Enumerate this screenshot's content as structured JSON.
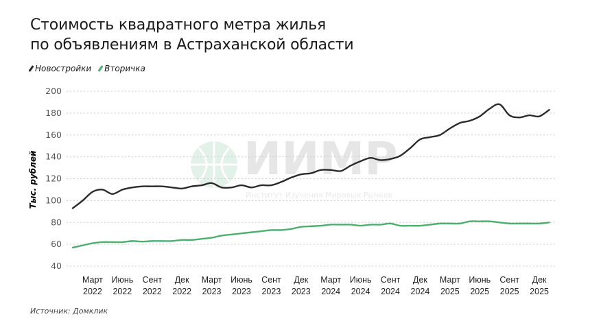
{
  "title_lines": [
    "Стоимость квадратного метра жилья",
    "по объявлениям в Астраханской области"
  ],
  "source": "Источник: Домклик",
  "watermark": {
    "logo": "ИИМР",
    "subtitle": "Институт Изучения Мировых Рынков"
  },
  "colors": {
    "Новостройки": "#2b2b2b",
    "Вторичка": "#4caf6e",
    "grid": "#cfcfcf"
  },
  "chart_data": {
    "type": "line",
    "title": "Стоимость квадратного метра жилья по объявлениям в Астраханской области",
    "ylabel": "Тыс. рублей",
    "xlabel": "",
    "ylim": [
      40,
      200
    ],
    "yticks": [
      40,
      60,
      80,
      100,
      120,
      140,
      160,
      180,
      200
    ],
    "grid": "horizontal dotted",
    "legend": "top-left",
    "x": [
      "2022-01",
      "2022-02",
      "2022-03",
      "2022-04",
      "2022-05",
      "2022-06",
      "2022-07",
      "2022-08",
      "2022-09",
      "2022-10",
      "2022-11",
      "2022-12",
      "2023-01",
      "2023-02",
      "2023-03",
      "2023-04",
      "2023-05",
      "2023-06",
      "2023-07",
      "2023-08",
      "2023-09",
      "2023-10",
      "2023-11",
      "2023-12",
      "2024-01",
      "2024-02",
      "2024-03",
      "2024-04",
      "2024-05",
      "2024-06",
      "2024-07",
      "2024-08",
      "2024-09",
      "2024-10",
      "2024-11",
      "2024-12",
      "2025-01",
      "2025-02",
      "2025-03",
      "2025-04",
      "2025-05",
      "2025-06",
      "2025-07",
      "2025-08",
      "2025-09",
      "2025-10",
      "2025-11",
      "2025-12",
      "2026-01"
    ],
    "xticks": [
      {
        "x": "2022-03",
        "label": [
          "Март",
          "2022"
        ]
      },
      {
        "x": "2022-06",
        "label": [
          "Июнь",
          "2022"
        ]
      },
      {
        "x": "2022-09",
        "label": [
          "Сент",
          "2022"
        ]
      },
      {
        "x": "2022-12",
        "label": [
          "Дек",
          "2022"
        ]
      },
      {
        "x": "2023-03",
        "label": [
          "Март",
          "2023"
        ]
      },
      {
        "x": "2023-06",
        "label": [
          "Июнь",
          "2023"
        ]
      },
      {
        "x": "2023-09",
        "label": [
          "Сент",
          "2023"
        ]
      },
      {
        "x": "2023-12",
        "label": [
          "Дек",
          "2023"
        ]
      },
      {
        "x": "2024-03",
        "label": [
          "Март",
          "2024"
        ]
      },
      {
        "x": "2024-06",
        "label": [
          "Июнь",
          "2024"
        ]
      },
      {
        "x": "2024-09",
        "label": [
          "Сент",
          "2024"
        ]
      },
      {
        "x": "2024-12",
        "label": [
          "Дек",
          "2024"
        ]
      },
      {
        "x": "2025-03",
        "label": [
          "Март",
          "2025"
        ]
      },
      {
        "x": "2025-06",
        "label": [
          "Июнь",
          "2025"
        ]
      },
      {
        "x": "2025-09",
        "label": [
          "Сент",
          "2025"
        ]
      },
      {
        "x": "2025-12",
        "label": [
          "Дек",
          "2025"
        ]
      }
    ],
    "series": [
      {
        "name": "Новостройки",
        "color": "#2b2b2b",
        "values": [
          93,
          100,
          108,
          110,
          106,
          110,
          112,
          113,
          113,
          113,
          112,
          111,
          113,
          114,
          116,
          112,
          112,
          114,
          112,
          114,
          114,
          117,
          121,
          124,
          125,
          128,
          128,
          127,
          132,
          136,
          139,
          137,
          138,
          141,
          148,
          156,
          158,
          160,
          166,
          171,
          173,
          177,
          184,
          188,
          178,
          176,
          178,
          177,
          183
        ]
      },
      {
        "name": "Вторичка",
        "color": "#4caf6e",
        "values": [
          57,
          59,
          61,
          62,
          62,
          62,
          63,
          62.5,
          63,
          63,
          63,
          64,
          64,
          65,
          66,
          68,
          69,
          70,
          71,
          72,
          73,
          73,
          74,
          76,
          76.5,
          77,
          78,
          78,
          78,
          77,
          78,
          78,
          79,
          77,
          77,
          77,
          78,
          79,
          79,
          79,
          81,
          81,
          81,
          80,
          79,
          79,
          79,
          79,
          80
        ]
      }
    ]
  }
}
